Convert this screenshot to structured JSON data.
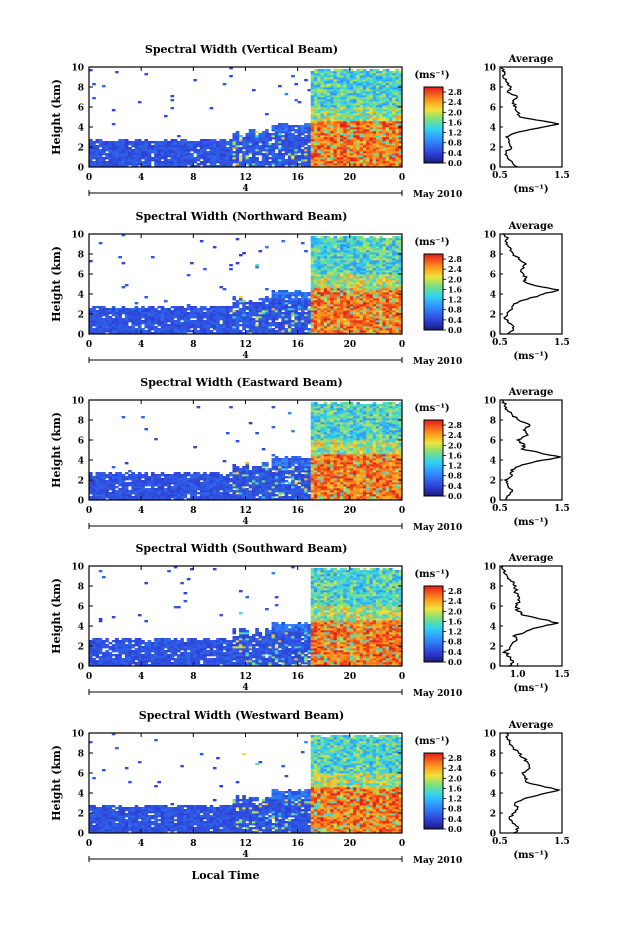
{
  "chart_data": [
    {
      "type": "heatmap",
      "title": "Spectral Width (Vertical Beam)",
      "ylabel": "Height (km)",
      "xlabel": "",
      "x_ticks": [
        "0",
        "4",
        "8",
        "12",
        "16",
        "20",
        "0"
      ],
      "y_ticks": [
        "0",
        "2",
        "4",
        "6",
        "8",
        "10"
      ],
      "date_tick": "4",
      "date_label": "May 2010",
      "xlim": [
        0,
        24
      ],
      "ylim": [
        0,
        10
      ],
      "colorbar": {
        "unit": "(ms⁻¹)",
        "ticks": [
          "0.0",
          "0.4",
          "0.8",
          "1.2",
          "1.6",
          "2.0",
          "2.4",
          "2.8"
        ],
        "range": [
          0,
          3.0
        ]
      },
      "average": {
        "title": "Average",
        "xlabel": "(ms⁻¹)",
        "x_ticks": [
          "0.5",
          "1.5"
        ],
        "xlim": [
          0.5,
          1.5
        ],
        "profile": [
          {
            "h": 0.0,
            "v": 0.78
          },
          {
            "h": 0.5,
            "v": 0.7
          },
          {
            "h": 1.0,
            "v": 0.62
          },
          {
            "h": 1.5,
            "v": 0.6
          },
          {
            "h": 2.0,
            "v": 0.68
          },
          {
            "h": 2.5,
            "v": 0.64
          },
          {
            "h": 3.0,
            "v": 0.6
          },
          {
            "h": 3.5,
            "v": 0.8
          },
          {
            "h": 4.0,
            "v": 1.2
          },
          {
            "h": 4.3,
            "v": 1.45
          },
          {
            "h": 4.6,
            "v": 1.2
          },
          {
            "h": 5.0,
            "v": 0.82
          },
          {
            "h": 5.5,
            "v": 0.78
          },
          {
            "h": 6.0,
            "v": 0.76
          },
          {
            "h": 6.5,
            "v": 0.72
          },
          {
            "h": 7.0,
            "v": 0.78
          },
          {
            "h": 7.5,
            "v": 0.62
          },
          {
            "h": 8.0,
            "v": 0.68
          },
          {
            "h": 8.5,
            "v": 0.6
          },
          {
            "h": 9.0,
            "v": 0.55
          },
          {
            "h": 9.5,
            "v": 0.58
          },
          {
            "h": 10.0,
            "v": 0.52
          }
        ]
      }
    },
    {
      "type": "heatmap",
      "title": "Spectral Width (Northward Beam)",
      "ylabel": "Height (km)",
      "xlabel": "",
      "x_ticks": [
        "0",
        "4",
        "8",
        "12",
        "16",
        "20",
        "0"
      ],
      "y_ticks": [
        "0",
        "2",
        "4",
        "6",
        "8",
        "10"
      ],
      "date_tick": "4",
      "date_label": "May 2010",
      "xlim": [
        0,
        24
      ],
      "ylim": [
        0,
        10
      ],
      "colorbar": {
        "unit": "(ms⁻¹)",
        "ticks": [
          "0.0",
          "0.4",
          "0.8",
          "1.2",
          "1.6",
          "2.0",
          "2.4",
          "2.8"
        ],
        "range": [
          0,
          3.0
        ]
      },
      "average": {
        "title": "Average",
        "xlabel": "(ms⁻¹)",
        "x_ticks": [
          "0.5",
          "1.5"
        ],
        "xlim": [
          0.5,
          1.5
        ],
        "profile": [
          {
            "h": 0.0,
            "v": 0.62
          },
          {
            "h": 0.5,
            "v": 0.72
          },
          {
            "h": 1.0,
            "v": 0.68
          },
          {
            "h": 1.5,
            "v": 0.58
          },
          {
            "h": 2.0,
            "v": 0.62
          },
          {
            "h": 2.5,
            "v": 0.7
          },
          {
            "h": 3.0,
            "v": 0.72
          },
          {
            "h": 3.5,
            "v": 0.95
          },
          {
            "h": 4.0,
            "v": 1.2
          },
          {
            "h": 4.4,
            "v": 1.45
          },
          {
            "h": 4.8,
            "v": 1.1
          },
          {
            "h": 5.2,
            "v": 0.9
          },
          {
            "h": 5.6,
            "v": 0.92
          },
          {
            "h": 6.0,
            "v": 0.88
          },
          {
            "h": 6.5,
            "v": 0.85
          },
          {
            "h": 7.0,
            "v": 0.92
          },
          {
            "h": 7.5,
            "v": 0.8
          },
          {
            "h": 8.0,
            "v": 0.72
          },
          {
            "h": 8.5,
            "v": 0.68
          },
          {
            "h": 9.0,
            "v": 0.6
          },
          {
            "h": 9.5,
            "v": 0.62
          },
          {
            "h": 10.0,
            "v": 0.55
          }
        ]
      }
    },
    {
      "type": "heatmap",
      "title": "Spectral Width (Eastward Beam)",
      "ylabel": "Height (km)",
      "xlabel": "",
      "x_ticks": [
        "0",
        "4",
        "8",
        "12",
        "16",
        "20",
        "0"
      ],
      "y_ticks": [
        "0",
        "2",
        "4",
        "6",
        "8",
        "10"
      ],
      "date_tick": "4",
      "date_label": "May 2010",
      "xlim": [
        0,
        24
      ],
      "ylim": [
        0,
        10
      ],
      "colorbar": {
        "unit": "(ms⁻¹)",
        "ticks": [
          "0.0",
          "0.4",
          "0.8",
          "1.2",
          "1.6",
          "2.0",
          "2.4",
          "2.8"
        ],
        "range": [
          0,
          3.0
        ]
      },
      "average": {
        "title": "Average",
        "xlabel": "(ms⁻¹)",
        "x_ticks": [
          "0.5",
          "1.5"
        ],
        "xlim": [
          0.5,
          1.5
        ],
        "profile": [
          {
            "h": 0.0,
            "v": 0.6
          },
          {
            "h": 0.5,
            "v": 0.65
          },
          {
            "h": 1.0,
            "v": 0.7
          },
          {
            "h": 1.5,
            "v": 0.62
          },
          {
            "h": 2.0,
            "v": 0.58
          },
          {
            "h": 2.5,
            "v": 0.7
          },
          {
            "h": 3.0,
            "v": 0.68
          },
          {
            "h": 3.5,
            "v": 0.85
          },
          {
            "h": 4.0,
            "v": 1.2
          },
          {
            "h": 4.3,
            "v": 1.48
          },
          {
            "h": 4.7,
            "v": 1.15
          },
          {
            "h": 5.1,
            "v": 0.85
          },
          {
            "h": 5.5,
            "v": 0.9
          },
          {
            "h": 6.0,
            "v": 0.78
          },
          {
            "h": 6.5,
            "v": 0.95
          },
          {
            "h": 7.0,
            "v": 0.88
          },
          {
            "h": 7.5,
            "v": 0.98
          },
          {
            "h": 8.0,
            "v": 0.8
          },
          {
            "h": 8.5,
            "v": 0.7
          },
          {
            "h": 9.0,
            "v": 0.62
          },
          {
            "h": 9.5,
            "v": 0.58
          },
          {
            "h": 10.0,
            "v": 0.55
          }
        ]
      }
    },
    {
      "type": "heatmap",
      "title": "Spectral Width (Southward Beam)",
      "ylabel": "Height (km)",
      "xlabel": "",
      "x_ticks": [
        "0",
        "4",
        "8",
        "12",
        "16",
        "20",
        "0"
      ],
      "y_ticks": [
        "0",
        "2",
        "4",
        "6",
        "8",
        "10"
      ],
      "date_tick": "4",
      "date_label": "May 2010",
      "xlim": [
        0,
        24
      ],
      "ylim": [
        0,
        10
      ],
      "colorbar": {
        "unit": "(ms⁻¹)",
        "ticks": [
          "0.0",
          "0.4",
          "0.8",
          "1.2",
          "1.6",
          "2.0",
          "2.4",
          "2.8"
        ],
        "range": [
          0,
          3.0
        ]
      },
      "average": {
        "title": "Average",
        "xlabel": "(ms⁻¹)",
        "x_ticks": [
          "1.0",
          "1.5"
        ],
        "xlim": [
          0.8,
          1.5
        ],
        "profile": [
          {
            "h": 0.0,
            "v": 0.9
          },
          {
            "h": 0.5,
            "v": 0.95
          },
          {
            "h": 1.0,
            "v": 0.88
          },
          {
            "h": 1.5,
            "v": 0.86
          },
          {
            "h": 2.0,
            "v": 0.92
          },
          {
            "h": 2.5,
            "v": 0.98
          },
          {
            "h": 3.0,
            "v": 0.95
          },
          {
            "h": 3.5,
            "v": 1.1
          },
          {
            "h": 4.0,
            "v": 1.3
          },
          {
            "h": 4.3,
            "v": 1.46
          },
          {
            "h": 4.7,
            "v": 1.25
          },
          {
            "h": 5.1,
            "v": 1.05
          },
          {
            "h": 5.5,
            "v": 1.0
          },
          {
            "h": 6.0,
            "v": 0.98
          },
          {
            "h": 6.5,
            "v": 1.02
          },
          {
            "h": 7.0,
            "v": 1.0
          },
          {
            "h": 7.5,
            "v": 0.97
          },
          {
            "h": 8.0,
            "v": 0.98
          },
          {
            "h": 8.5,
            "v": 0.92
          },
          {
            "h": 9.0,
            "v": 0.88
          },
          {
            "h": 9.5,
            "v": 0.86
          },
          {
            "h": 10.0,
            "v": 0.84
          }
        ]
      }
    },
    {
      "type": "heatmap",
      "title": "Spectral Width (Westward Beam)",
      "ylabel": "Height (km)",
      "xlabel": "Local Time",
      "x_ticks": [
        "0",
        "4",
        "8",
        "12",
        "16",
        "20",
        "0"
      ],
      "y_ticks": [
        "0",
        "2",
        "4",
        "6",
        "8",
        "10"
      ],
      "date_tick": "4",
      "date_label": "May 2010",
      "xlim": [
        0,
        24
      ],
      "ylim": [
        0,
        10
      ],
      "colorbar": {
        "unit": "(ms⁻¹)",
        "ticks": [
          "0.0",
          "0.4",
          "0.8",
          "1.2",
          "1.6",
          "2.0",
          "2.4",
          "2.8"
        ],
        "range": [
          0,
          3.0
        ]
      },
      "average": {
        "title": "Average",
        "xlabel": "(ms⁻¹)",
        "x_ticks": [
          "0.5",
          "1.5"
        ],
        "xlim": [
          0.5,
          1.5
        ],
        "profile": [
          {
            "h": 0.0,
            "v": 0.72
          },
          {
            "h": 0.5,
            "v": 0.8
          },
          {
            "h": 1.0,
            "v": 0.7
          },
          {
            "h": 1.5,
            "v": 0.65
          },
          {
            "h": 2.0,
            "v": 0.72
          },
          {
            "h": 2.5,
            "v": 0.78
          },
          {
            "h": 3.0,
            "v": 0.74
          },
          {
            "h": 3.5,
            "v": 0.92
          },
          {
            "h": 4.0,
            "v": 1.25
          },
          {
            "h": 4.3,
            "v": 1.45
          },
          {
            "h": 4.7,
            "v": 1.18
          },
          {
            "h": 5.1,
            "v": 0.92
          },
          {
            "h": 5.5,
            "v": 0.9
          },
          {
            "h": 6.0,
            "v": 0.86
          },
          {
            "h": 6.5,
            "v": 0.98
          },
          {
            "h": 7.0,
            "v": 0.95
          },
          {
            "h": 7.5,
            "v": 0.88
          },
          {
            "h": 8.0,
            "v": 0.8
          },
          {
            "h": 8.5,
            "v": 0.72
          },
          {
            "h": 9.0,
            "v": 0.66
          },
          {
            "h": 9.5,
            "v": 0.62
          },
          {
            "h": 10.0,
            "v": 0.6
          }
        ]
      }
    }
  ]
}
